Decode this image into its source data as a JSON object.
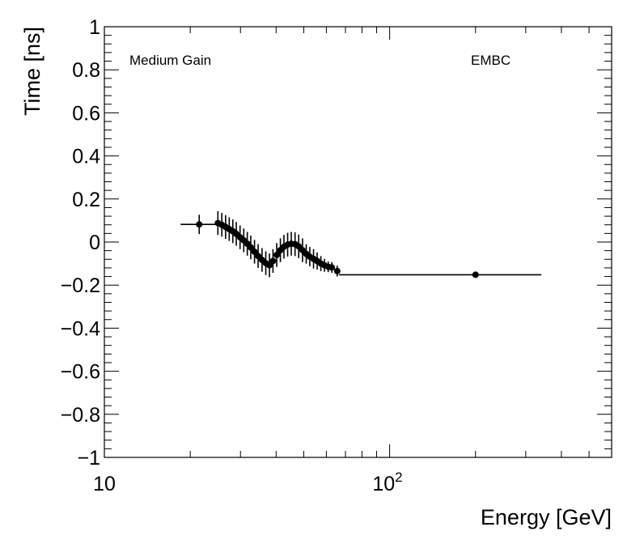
{
  "chart_data": {
    "type": "scatter",
    "xlabel": "Energy [GeV]",
    "ylabel": "Time [ns]",
    "xscale": "log",
    "xlim": [
      10,
      600
    ],
    "ylim": [
      -1,
      1
    ],
    "y_ticks": [
      "1",
      "0.8",
      "0.6",
      "0.4",
      "0.2",
      "0",
      "−0.2",
      "−0.4",
      "−0.6",
      "−0.8",
      "−1"
    ],
    "x_ticks": {
      "ten": "10",
      "hundred_base": "10",
      "hundred_exp": "2"
    },
    "annotations": {
      "left": "Medium Gain",
      "right": "EMBC"
    },
    "grid": false,
    "series": [
      {
        "points": [
          {
            "x": 21.5,
            "y": 0.082,
            "xlo": 18.5,
            "xhi": 24.8,
            "err": 0.045
          },
          {
            "x": 25.0,
            "y": 0.088,
            "err": 0.055
          },
          {
            "x": 25.8,
            "y": 0.08,
            "err": 0.055
          },
          {
            "x": 26.6,
            "y": 0.07,
            "err": 0.055
          },
          {
            "x": 27.4,
            "y": 0.06,
            "err": 0.055
          },
          {
            "x": 28.2,
            "y": 0.05,
            "err": 0.055
          },
          {
            "x": 29.0,
            "y": 0.038,
            "err": 0.055
          },
          {
            "x": 29.9,
            "y": 0.022,
            "err": 0.055
          },
          {
            "x": 30.8,
            "y": 0.008,
            "err": 0.055
          },
          {
            "x": 31.7,
            "y": -0.008,
            "err": 0.055
          },
          {
            "x": 32.6,
            "y": -0.025,
            "err": 0.055
          },
          {
            "x": 33.6,
            "y": -0.045,
            "err": 0.055
          },
          {
            "x": 34.6,
            "y": -0.065,
            "err": 0.055
          },
          {
            "x": 35.7,
            "y": -0.083,
            "err": 0.055
          },
          {
            "x": 36.8,
            "y": -0.098,
            "err": 0.055
          },
          {
            "x": 37.9,
            "y": -0.108,
            "err": 0.055
          },
          {
            "x": 39.0,
            "y": -0.088,
            "err": 0.055
          },
          {
            "x": 40.2,
            "y": -0.06,
            "err": 0.055
          },
          {
            "x": 41.4,
            "y": -0.038,
            "err": 0.055
          },
          {
            "x": 42.6,
            "y": -0.022,
            "err": 0.055
          },
          {
            "x": 43.9,
            "y": -0.012,
            "err": 0.055
          },
          {
            "x": 45.2,
            "y": -0.008,
            "err": 0.055
          },
          {
            "x": 46.6,
            "y": -0.01,
            "err": 0.055
          },
          {
            "x": 48.0,
            "y": -0.02,
            "err": 0.055
          },
          {
            "x": 49.5,
            "y": -0.038,
            "err": 0.055
          },
          {
            "x": 51.0,
            "y": -0.055,
            "err": 0.045
          },
          {
            "x": 52.5,
            "y": -0.068,
            "err": 0.045
          },
          {
            "x": 54.1,
            "y": -0.078,
            "err": 0.045
          },
          {
            "x": 55.7,
            "y": -0.088,
            "err": 0.04
          },
          {
            "x": 57.4,
            "y": -0.1,
            "err": 0.035
          },
          {
            "x": 59.1,
            "y": -0.108,
            "err": 0.03
          },
          {
            "x": 60.9,
            "y": -0.115,
            "err": 0.025
          },
          {
            "x": 62.7,
            "y": -0.118,
            "err": 0.025
          },
          {
            "x": 65.5,
            "y": -0.135,
            "err": 0.025
          },
          {
            "x": 200,
            "y": -0.152,
            "xlo": 66.5,
            "xhi": 340,
            "err": 0.008
          }
        ]
      }
    ]
  }
}
